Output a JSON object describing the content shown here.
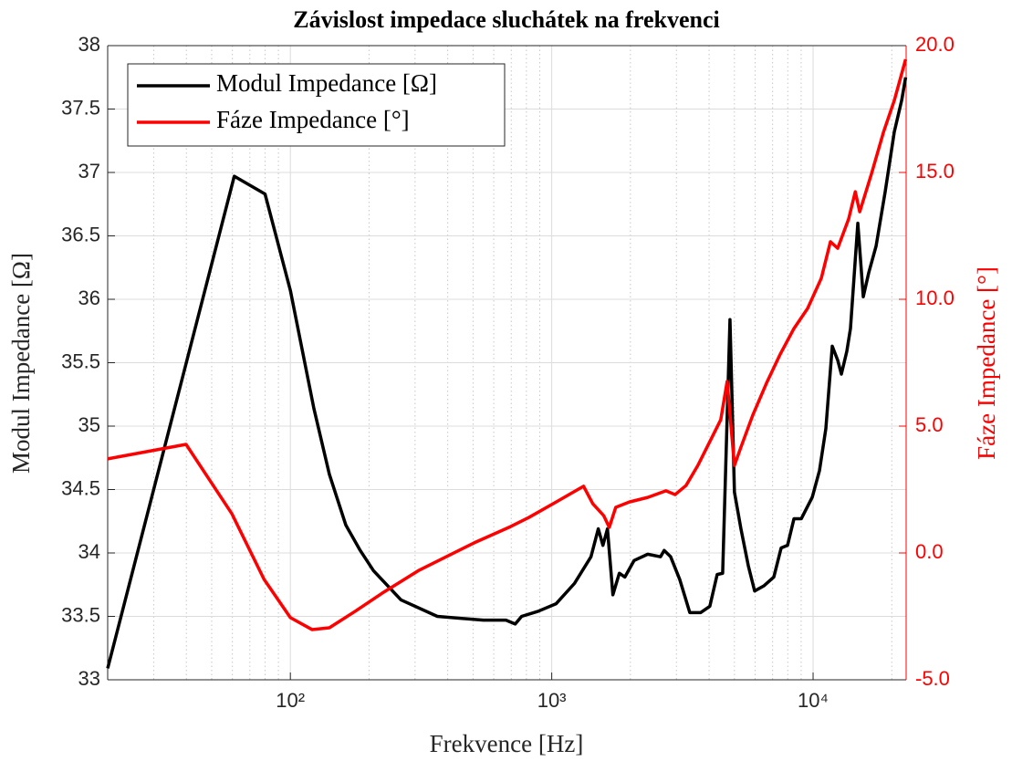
{
  "chart_data": {
    "type": "line",
    "title": "Závislost impedace sluchátek na frekvenci",
    "xlabel": "Frekvence [Hz]",
    "ylabel": "Modul Impedance [Ω]",
    "y2label": "Fáze Impedance [°]",
    "xscale": "log",
    "xlim": [
      20,
      22700
    ],
    "xticks": [
      {
        "value": 100,
        "label": "10²"
      },
      {
        "value": 1000,
        "label": "10³"
      },
      {
        "value": 10000,
        "label": "10⁴"
      }
    ],
    "xminorticks": [
      30,
      40,
      50,
      60,
      70,
      80,
      90,
      200,
      300,
      400,
      500,
      600,
      700,
      800,
      900,
      2000,
      3000,
      4000,
      5000,
      6000,
      7000,
      8000,
      9000,
      20000
    ],
    "ylim": [
      33,
      38
    ],
    "yticks": [
      33,
      33.5,
      34,
      34.5,
      35,
      35.5,
      36,
      36.5,
      37,
      37.5,
      38
    ],
    "y2lim": [
      -5,
      20
    ],
    "y2ticks": [
      {
        "value": -5,
        "label": "-5.0"
      },
      {
        "value": 0,
        "label": "0.0"
      },
      {
        "value": 5,
        "label": "5.0"
      },
      {
        "value": 10,
        "label": "10.0"
      },
      {
        "value": 15,
        "label": "15.0"
      },
      {
        "value": 20,
        "label": "20.0"
      }
    ],
    "y2color": "#ff0000",
    "grid": true,
    "legend": "upper left",
    "series": [
      {
        "name": "Modul Impedance [Ω]",
        "color": "#000000",
        "x": [
          20,
          61,
          80,
          100,
          123,
          141,
          163,
          185,
          208,
          265,
          365,
          547,
          668,
          725,
          767,
          887,
          1040,
          1222,
          1413,
          1507,
          1570,
          1634,
          1714,
          1814,
          1905,
          2065,
          2330,
          2608,
          2693,
          2851,
          3090,
          3375,
          3716,
          4027,
          4295,
          4508,
          4808,
          5001,
          5296,
          5650,
          5975,
          6475,
          7075,
          7548,
          7985,
          8450,
          9015,
          9930,
          10580,
          11190,
          11840,
          12420,
          12830,
          13460,
          13900,
          14830,
          15560,
          16330,
          17420,
          18880,
          20450,
          21830,
          22600
        ],
        "values": [
          33.09,
          36.97,
          36.83,
          36.07,
          35.14,
          34.62,
          34.22,
          34.02,
          33.86,
          33.63,
          33.5,
          33.47,
          33.47,
          33.44,
          33.5,
          33.54,
          33.6,
          33.76,
          33.97,
          34.19,
          34.06,
          34.19,
          33.67,
          33.84,
          33.81,
          33.94,
          33.99,
          33.97,
          34.02,
          33.97,
          33.79,
          33.53,
          33.53,
          33.58,
          33.83,
          33.84,
          35.84,
          34.48,
          34.19,
          33.9,
          33.7,
          33.74,
          33.81,
          34.04,
          34.06,
          34.27,
          34.27,
          34.44,
          34.65,
          34.98,
          35.63,
          35.52,
          35.41,
          35.59,
          35.77,
          36.6,
          36.02,
          36.21,
          36.42,
          36.85,
          37.32,
          37.57,
          37.75
        ]
      },
      {
        "name": "Fáze Impedance [°]",
        "color": "#ff0000",
        "axis": "y2",
        "x": [
          20,
          39.9,
          59.7,
          79.3,
          100,
          121,
          141,
          177,
          225,
          311,
          505,
          696,
          818,
          1040,
          1324,
          1436,
          1581,
          1660,
          1758,
          1982,
          2330,
          2735,
          2965,
          3265,
          3623,
          4090,
          4432,
          4690,
          5000,
          5296,
          5876,
          6630,
          7490,
          8450,
          9530,
          10750,
          11650,
          12420,
          13680,
          14500,
          15080,
          16740,
          18580,
          20450,
          22600
        ],
        "values": [
          3.71,
          4.28,
          1.55,
          -1.04,
          -2.55,
          -3.02,
          -2.95,
          -2.3,
          -1.58,
          -0.68,
          0.4,
          1.04,
          1.4,
          2.01,
          2.63,
          1.94,
          1.47,
          1.01,
          1.8,
          2.01,
          2.19,
          2.45,
          2.3,
          2.66,
          3.45,
          4.53,
          5.25,
          6.76,
          3.45,
          4.17,
          5.43,
          6.69,
          7.84,
          8.85,
          9.64,
          10.83,
          12.27,
          12.01,
          13.17,
          14.24,
          13.45,
          14.96,
          16.58,
          17.84,
          19.46
        ]
      }
    ]
  }
}
